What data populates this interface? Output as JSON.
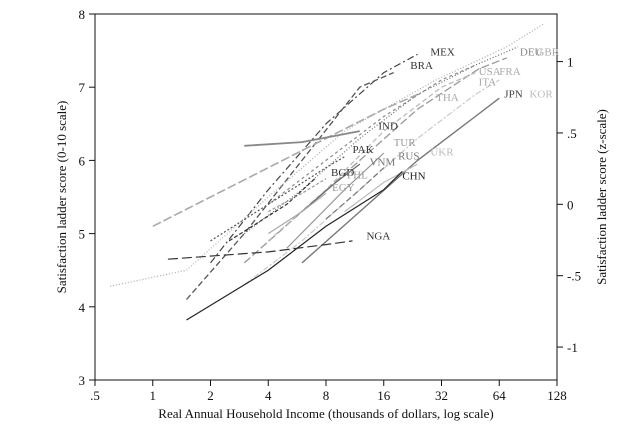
{
  "chart_data": {
    "type": "line",
    "xscale": "log2",
    "xlim": [
      0.5,
      128
    ],
    "ylim": [
      3,
      8
    ],
    "y2lim": [
      -1,
      1
    ],
    "xticks": [
      ".5",
      "1",
      "2",
      "4",
      "8",
      "16",
      "32",
      "64",
      "128"
    ],
    "xtick_values": [
      0.5,
      1,
      2,
      4,
      8,
      16,
      32,
      64,
      128
    ],
    "yticks": [
      "3",
      "4",
      "5",
      "6",
      "7",
      "8"
    ],
    "ytick_values": [
      3,
      4,
      5,
      6,
      7,
      8
    ],
    "y2ticks": [
      "-1",
      "-.5",
      "0",
      ".5",
      "1"
    ],
    "y2tick_values": [
      -1,
      -0.5,
      0,
      0.5,
      1
    ],
    "xlabel": "Real Annual Household Income (thousands of dollars, log scale)",
    "ylabel": "Satisfaction ladder score (0-10 scale)",
    "y2label": "Satisfaction ladder score (z-scale)",
    "grid": false,
    "series": [
      {
        "name": "MEX",
        "color": "#444444",
        "dash": "7,3,2,3",
        "width": 1.2,
        "x": [
          2,
          4,
          8,
          16,
          24
        ],
        "y": [
          4.6,
          5.6,
          6.5,
          7.2,
          7.45
        ]
      },
      {
        "name": "BRA",
        "color": "#555555",
        "dash": "6,3",
        "width": 1.3,
        "x": [
          1.5,
          3,
          6,
          12,
          18
        ],
        "y": [
          4.1,
          5.0,
          6.0,
          7.0,
          7.2
        ]
      },
      {
        "name": "GBR",
        "color": "#aaaaaa",
        "dash": "1,2",
        "width": 1.2,
        "x": [
          0.6,
          1.5,
          4,
          10,
          30,
          70,
          110
        ],
        "y": [
          4.28,
          4.5,
          5.5,
          6.4,
          7.1,
          7.55,
          7.87
        ]
      },
      {
        "name": "DEU",
        "color": "#666666",
        "dash": "1,2",
        "width": 1.2,
        "x": [
          3,
          6,
          12,
          24,
          48,
          80
        ],
        "y": [
          5.0,
          5.6,
          6.3,
          6.9,
          7.3,
          7.55
        ]
      },
      {
        "name": "FRA",
        "color": "#999999",
        "dash": "8,3",
        "width": 1.3,
        "x": [
          3,
          6,
          12,
          24,
          50,
          70
        ],
        "y": [
          4.6,
          5.3,
          6.0,
          6.7,
          7.25,
          7.4
        ]
      },
      {
        "name": "ITA",
        "color": "#bbbbbb",
        "dash": "5,3",
        "width": 1.3,
        "x": [
          4,
          8,
          16,
          32,
          48
        ],
        "y": [
          4.9,
          5.6,
          6.4,
          7.0,
          7.2
        ]
      },
      {
        "name": "USA",
        "color": "#888888",
        "dash": "3,3",
        "width": 1.2,
        "x": [
          4,
          8,
          16,
          32,
          48
        ],
        "y": [
          5.4,
          6.0,
          6.6,
          7.1,
          7.3
        ]
      },
      {
        "name": "KOR",
        "color": "#cccccc",
        "dash": "6,2,2,2",
        "width": 1.3,
        "x": [
          3,
          6,
          12,
          24,
          48,
          64
        ],
        "y": [
          4.3,
          4.9,
          5.6,
          6.3,
          6.9,
          7.1
        ]
      },
      {
        "name": "JPN",
        "color": "#777777",
        "dash": "",
        "width": 1.4,
        "x": [
          6,
          12,
          24,
          48,
          64
        ],
        "y": [
          4.6,
          5.3,
          6.0,
          6.6,
          6.85
        ]
      },
      {
        "name": "THA",
        "color": "#aaaaaa",
        "dash": "9,3",
        "width": 1.6,
        "x": [
          1,
          2,
          4,
          8,
          16,
          24
        ],
        "y": [
          5.1,
          5.5,
          5.9,
          6.3,
          6.7,
          6.9
        ]
      },
      {
        "name": "IND",
        "color": "#888888",
        "dash": "",
        "width": 1.8,
        "x": [
          3,
          6,
          12
        ],
        "y": [
          6.2,
          6.25,
          6.4
        ]
      },
      {
        "name": "PAK",
        "color": "#555555",
        "dash": "2,2",
        "width": 1.2,
        "x": [
          2,
          4,
          8,
          10
        ],
        "y": [
          4.9,
          5.4,
          5.9,
          6.05
        ]
      },
      {
        "name": "TUR",
        "color": "#999999",
        "dash": "",
        "width": 1.2,
        "x": [
          5,
          10,
          16
        ],
        "y": [
          4.8,
          5.6,
          6.1
        ]
      },
      {
        "name": "VNM",
        "color": "#666666",
        "dash": "",
        "width": 1.2,
        "x": [
          6,
          9,
          12
        ],
        "y": [
          5.3,
          5.7,
          5.95
        ]
      },
      {
        "name": "RUS",
        "color": "#777777",
        "dash": "6,3",
        "width": 1.2,
        "x": [
          8,
          12,
          16
        ],
        "y": [
          5.2,
          5.6,
          5.9
        ]
      },
      {
        "name": "UKR",
        "color": "#bbbbbb",
        "dash": "",
        "width": 1.2,
        "x": [
          10,
          16,
          24
        ],
        "y": [
          5.3,
          5.7,
          5.95
        ]
      },
      {
        "name": "CHN",
        "color": "#222222",
        "dash": "",
        "width": 1.2,
        "x": [
          1.5,
          4,
          8,
          16,
          20
        ],
        "y": [
          3.82,
          4.5,
          5.1,
          5.6,
          5.85
        ]
      },
      {
        "name": "BGD",
        "color": "#333333",
        "dash": "4,2",
        "width": 1.2,
        "x": [
          2.5,
          5,
          7
        ],
        "y": [
          4.9,
          5.4,
          5.75
        ]
      },
      {
        "name": "PHL",
        "color": "#999999",
        "dash": "3,2",
        "width": 1.2,
        "x": [
          4,
          6,
          8
        ],
        "y": [
          5.3,
          5.55,
          5.75
        ]
      },
      {
        "name": "EGY",
        "color": "#aaaaaa",
        "dash": "",
        "width": 1.2,
        "x": [
          4,
          6,
          8
        ],
        "y": [
          5.0,
          5.3,
          5.55
        ]
      },
      {
        "name": "NGA",
        "color": "#333333",
        "dash": "10,4",
        "width": 1.2,
        "x": [
          1.2,
          4,
          8,
          11
        ],
        "y": [
          4.65,
          4.75,
          4.85,
          4.9
        ]
      }
    ],
    "labels": [
      {
        "text": "MEX",
        "color": "#333333",
        "x": 28,
        "y": 7.43
      },
      {
        "text": "BRA",
        "color": "#333333",
        "x": 22,
        "y": 7.25
      },
      {
        "text": "DEU",
        "color": "#888888",
        "x": 82,
        "y": 7.43
      },
      {
        "text": "GBR",
        "color": "#aaaaaa",
        "x": 100,
        "y": 7.43
      },
      {
        "text": "USA",
        "color": "#aaaaaa",
        "x": 50,
        "y": 7.17
      },
      {
        "text": "FRA",
        "color": "#aaaaaa",
        "x": 64,
        "y": 7.17
      },
      {
        "text": "ITA",
        "color": "#aaaaaa",
        "x": 50,
        "y": 7.02
      },
      {
        "text": "THA",
        "color": "#aaaaaa",
        "x": 30,
        "y": 6.81
      },
      {
        "text": "JPN",
        "color": "#444444",
        "x": 68,
        "y": 6.86
      },
      {
        "text": "KOR",
        "color": "#bbbbbb",
        "x": 92,
        "y": 6.86
      },
      {
        "text": "IND",
        "color": "#333333",
        "x": 15,
        "y": 6.42
      },
      {
        "text": "PAK",
        "color": "#333333",
        "x": 11,
        "y": 6.1
      },
      {
        "text": "TUR",
        "color": "#999999",
        "x": 18,
        "y": 6.2
      },
      {
        "text": "RUS",
        "color": "#777777",
        "x": 19,
        "y": 6.01
      },
      {
        "text": "UKR",
        "color": "#bbbbbb",
        "x": 28,
        "y": 6.07
      },
      {
        "text": "VNM",
        "color": "#777777",
        "x": 13.5,
        "y": 5.93
      },
      {
        "text": "BGD",
        "color": "#333333",
        "x": 8.5,
        "y": 5.79
      },
      {
        "text": "PHL",
        "color": "#999999",
        "x": 10.3,
        "y": 5.75
      },
      {
        "text": "EGY",
        "color": "#999999",
        "x": 8.6,
        "y": 5.58
      },
      {
        "text": "CHN",
        "color": "#222222",
        "x": 20,
        "y": 5.74
      },
      {
        "text": "NGA",
        "color": "#333333",
        "x": 13,
        "y": 4.92
      }
    ]
  }
}
